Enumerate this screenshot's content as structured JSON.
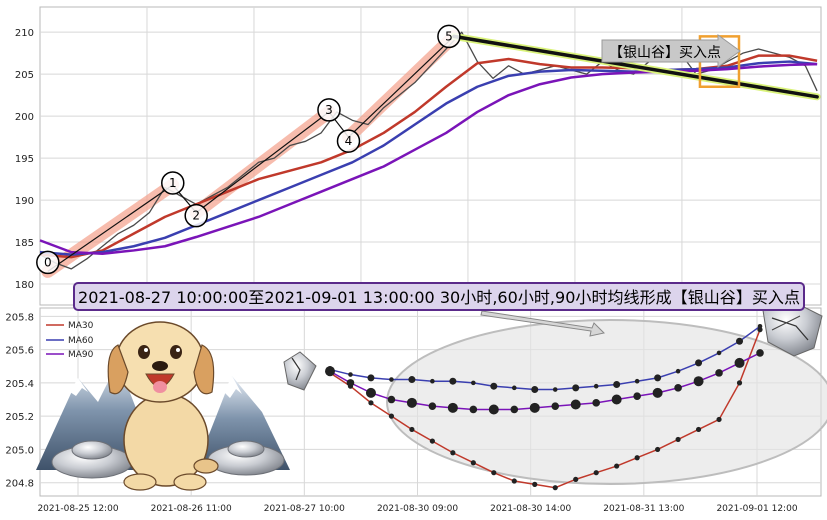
{
  "colors": {
    "price": "#4a4a4a",
    "ma30": "#c0392b",
    "ma60": "#3a3fb0",
    "ma90": "#7a14b8",
    "highlight": "#f4a08a",
    "trend": "#111111",
    "trend_glow": "#d9f27a",
    "banner_bg": "#dcd4ec",
    "banner_border": "#5a2a8a",
    "signal_box": "#f0a030",
    "grid": "#d8d8d8"
  },
  "banner": {
    "text": "2021-08-27 10:00:00至2021-09-01 13:00:00 30小时,60小时,90小时均线形成【银山谷】买入点"
  },
  "signal": {
    "label": "【银山谷】买入点"
  },
  "chart_data": [
    {
      "type": "line",
      "ylim": [
        177.5,
        213
      ],
      "yticks": [
        180,
        185,
        190,
        195,
        200,
        205,
        210
      ],
      "xlim": [
        0,
        100
      ],
      "grid": true,
      "series": [
        {
          "key": "price",
          "x": [
            0,
            2,
            4,
            6,
            8,
            10,
            12,
            14,
            16,
            18,
            20,
            22,
            24,
            26,
            28,
            30,
            32,
            34,
            36,
            38,
            40,
            42,
            44,
            46,
            48,
            50,
            52,
            54,
            56,
            58,
            60,
            62,
            64,
            66,
            68,
            70,
            72,
            74,
            76,
            78,
            80,
            82,
            84,
            86,
            88,
            90,
            92,
            94,
            96,
            98,
            99.5
          ],
          "y": [
            183.5,
            182.5,
            181.8,
            183,
            184.5,
            186,
            187,
            188.5,
            191.5,
            190.5,
            189.5,
            190.5,
            191.5,
            193,
            194.5,
            195,
            196.5,
            197,
            198,
            200.5,
            199.5,
            199,
            201,
            202.5,
            204,
            206,
            208,
            210,
            206.5,
            204.5,
            206,
            205,
            205.5,
            206,
            205.5,
            205,
            206.5,
            205.5,
            205,
            206.5,
            207,
            207.5,
            205,
            205.5,
            206.5,
            207.5,
            208,
            207.5,
            207,
            206,
            203
          ]
        },
        {
          "key": "ma30",
          "x": [
            0,
            4,
            8,
            12,
            16,
            20,
            24,
            28,
            32,
            36,
            40,
            44,
            48,
            52,
            56,
            60,
            64,
            68,
            72,
            76,
            80,
            84,
            88,
            92,
            96,
            99.5
          ],
          "y": [
            183.5,
            183.2,
            184,
            186,
            188,
            189.5,
            191,
            192.5,
            193.5,
            194.5,
            196,
            198,
            200.5,
            203.5,
            206.3,
            206.8,
            206.2,
            205.8,
            205.8,
            205.7,
            205.5,
            205.6,
            206,
            207.2,
            207.2,
            206.6
          ]
        },
        {
          "key": "ma60",
          "x": [
            0,
            4,
            8,
            12,
            16,
            20,
            24,
            28,
            32,
            36,
            40,
            44,
            48,
            52,
            56,
            60,
            64,
            68,
            72,
            76,
            80,
            84,
            88,
            92,
            96,
            99.5
          ],
          "y": [
            183.8,
            183.5,
            183.8,
            184.5,
            185.5,
            187,
            188.5,
            190,
            191.5,
            193,
            194.5,
            196.5,
            199,
            201.5,
            203.5,
            204.8,
            205.3,
            205.5,
            205.4,
            205.3,
            205.5,
            205.6,
            205.8,
            206.3,
            206.5,
            206.2
          ]
        },
        {
          "key": "ma90",
          "x": [
            0,
            4,
            8,
            12,
            16,
            20,
            24,
            28,
            32,
            36,
            40,
            44,
            48,
            52,
            56,
            60,
            64,
            68,
            72,
            76,
            80,
            84,
            88,
            92,
            96,
            99.5
          ],
          "y": [
            185.2,
            183.8,
            183.6,
            184,
            184.5,
            185.6,
            186.8,
            188,
            189.5,
            191,
            192.5,
            194,
            196,
            198,
            200.5,
            202.5,
            203.8,
            204.6,
            205,
            205.2,
            205.3,
            205.4,
            205.6,
            205.9,
            206.1,
            206.2
          ]
        }
      ],
      "annotations": {
        "waves": [
          {
            "label": "0",
            "x": 1,
            "y": 181.5
          },
          {
            "label": "1",
            "x": 17,
            "y": 191.8
          },
          {
            "label": "2",
            "x": 20,
            "y": 188.5
          },
          {
            "label": "3",
            "x": 37,
            "y": 200.5
          },
          {
            "label": "4",
            "x": 39.5,
            "y": 197.5
          },
          {
            "label": "5",
            "x": 53,
            "y": 209.5
          }
        ],
        "trendline": {
          "from": [
            53,
            209.5
          ],
          "to": [
            99.5,
            202.3
          ]
        },
        "signal_window": {
          "x": [
            84.5,
            89.5
          ],
          "y": [
            203.5,
            209.5
          ]
        }
      }
    },
    {
      "type": "line",
      "ylim": [
        204.72,
        205.85
      ],
      "yticks": [
        "205.8",
        "205.6",
        "205.4",
        "205.2",
        "205.0",
        "204.8"
      ],
      "xticks": [
        "2021-08-25 12:00",
        "2021-08-26 11:00",
        "2021-08-27 10:00",
        "2021-08-30 09:00",
        "2021-08-30 14:00",
        "2021-08-31 13:00",
        "2021-09-01 12:00"
      ],
      "legend": {
        "position": "top-left",
        "entries": [
          "MA30",
          "MA60",
          "MA90"
        ]
      },
      "grid": true,
      "series": [
        {
          "name": "MA30",
          "key": "ma30",
          "x": [
            0,
            1,
            2,
            3,
            4,
            5,
            6,
            7,
            8,
            9,
            10,
            11,
            12,
            13,
            14,
            15,
            16,
            17,
            18,
            19,
            20,
            21
          ],
          "y": [
            205.46,
            205.38,
            205.28,
            205.2,
            205.12,
            205.05,
            204.98,
            204.92,
            204.86,
            204.81,
            204.79,
            204.77,
            204.82,
            204.86,
            204.9,
            204.95,
            205.0,
            205.06,
            205.12,
            205.18,
            205.4,
            205.72
          ]
        },
        {
          "name": "MA60",
          "key": "ma60",
          "x": [
            0,
            1,
            2,
            3,
            4,
            5,
            6,
            7,
            8,
            9,
            10,
            11,
            12,
            13,
            14,
            15,
            16,
            17,
            18,
            19,
            20,
            21
          ],
          "y": [
            205.48,
            205.45,
            205.43,
            205.42,
            205.42,
            205.41,
            205.41,
            205.4,
            205.38,
            205.37,
            205.36,
            205.36,
            205.37,
            205.38,
            205.39,
            205.41,
            205.43,
            205.47,
            205.52,
            205.58,
            205.65,
            205.74
          ]
        },
        {
          "name": "MA90",
          "key": "ma90",
          "x": [
            0,
            1,
            2,
            3,
            4,
            5,
            6,
            7,
            8,
            9,
            10,
            11,
            12,
            13,
            14,
            15,
            16,
            17,
            18,
            19,
            20,
            21
          ],
          "y": [
            205.47,
            205.4,
            205.34,
            205.3,
            205.28,
            205.26,
            205.25,
            205.24,
            205.24,
            205.24,
            205.25,
            205.26,
            205.27,
            205.28,
            205.3,
            205.32,
            205.34,
            205.37,
            205.41,
            205.46,
            205.52,
            205.58
          ]
        }
      ]
    }
  ]
}
